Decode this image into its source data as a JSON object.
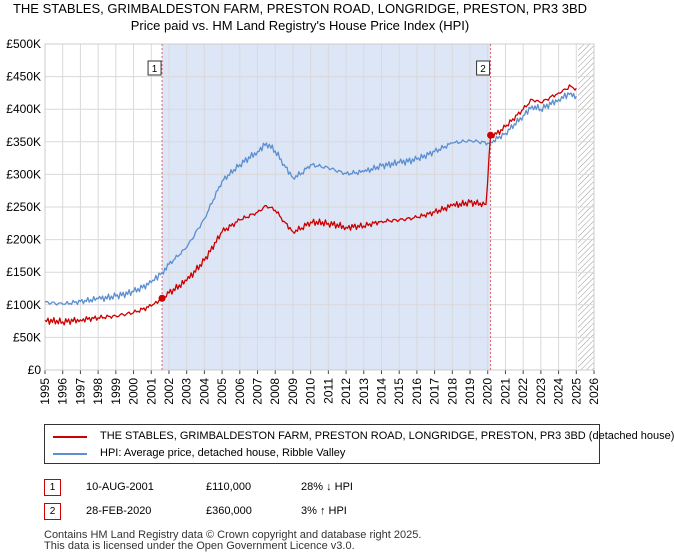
{
  "header": {
    "title_line1": "THE STABLES, GRIMBALDESTON FARM, PRESTON ROAD, LONGRIDGE, PRESTON, PR3 3BD",
    "title_line2": "Price paid vs. HM Land Registry's House Price Index (HPI)"
  },
  "colors": {
    "property_line": "#cc0000",
    "hpi_line": "#5b8fd0",
    "shaded_region": "#dde6f7",
    "grid": "#d9d9d9",
    "marker_vline": "#e06666"
  },
  "chart_data": {
    "type": "line",
    "title": "THE STABLES, GRIMBALDESTON FARM, PRESTON ROAD, LONGRIDGE, PRESTON, PR3 3BD",
    "subtitle": "Price paid vs. HM Land Registry's House Price Index (HPI)",
    "xlim": [
      1995,
      2026
    ],
    "ylim": [
      0,
      500000
    ],
    "x_ticks": [
      "1995",
      "1996",
      "1997",
      "1998",
      "1999",
      "2000",
      "2001",
      "2002",
      "2003",
      "2004",
      "2005",
      "2006",
      "2007",
      "2008",
      "2009",
      "2010",
      "2011",
      "2012",
      "2013",
      "2014",
      "2015",
      "2016",
      "2017",
      "2018",
      "2019",
      "2020",
      "2021",
      "2022",
      "2023",
      "2024",
      "2025",
      "2026"
    ],
    "y_ticks": [
      {
        "value": 0,
        "label": "£0"
      },
      {
        "value": 50000,
        "label": "£50K"
      },
      {
        "value": 100000,
        "label": "£100K"
      },
      {
        "value": 150000,
        "label": "£150K"
      },
      {
        "value": 200000,
        "label": "£200K"
      },
      {
        "value": 250000,
        "label": "£250K"
      },
      {
        "value": 300000,
        "label": "£300K"
      },
      {
        "value": 350000,
        "label": "£350K"
      },
      {
        "value": 400000,
        "label": "£400K"
      },
      {
        "value": 450000,
        "label": "£450K"
      },
      {
        "value": 500000,
        "label": "£500K"
      }
    ],
    "shaded_period": [
      2001.61,
      2020.16
    ],
    "forecast_hatch_from": 2025.1,
    "markers": [
      {
        "label": "1",
        "x": 2001.61
      },
      {
        "label": "2",
        "x": 2020.16
      }
    ],
    "sale_points": [
      {
        "x": 2001.61,
        "y": 110000
      },
      {
        "x": 2020.16,
        "y": 360000
      }
    ],
    "series": [
      {
        "name": "THE STABLES, GRIMBALDESTON FARM, PRESTON ROAD, LONGRIDGE, PRESTON, PR3 3BD (detached house)",
        "x": [
          1995,
          1996,
          1997,
          1998,
          1999,
          2000,
          2001,
          2001.61,
          2002,
          2003,
          2004,
          2005,
          2006,
          2007,
          2007.5,
          2008,
          2008.5,
          2009,
          2009.5,
          2010,
          2011,
          2012,
          2013,
          2014,
          2015,
          2016,
          2017,
          2018,
          2019,
          2019.9,
          2020.16,
          2020.5,
          2021,
          2022,
          2022.5,
          2023,
          2024,
          2024.7,
          2025
        ],
        "y": [
          76000,
          74000,
          77000,
          80000,
          83000,
          88000,
          98000,
          110000,
          118000,
          137000,
          168000,
          212000,
          230000,
          242000,
          252000,
          245000,
          228000,
          212000,
          218000,
          227000,
          225000,
          219000,
          221000,
          228000,
          230000,
          234000,
          242000,
          252000,
          257000,
          254000,
          360000,
          362000,
          373000,
          400000,
          415000,
          410000,
          425000,
          435000,
          432000
        ]
      },
      {
        "name": "HPI: Average price, detached house, Ribble Valley",
        "x": [
          1995,
          1996,
          1997,
          1998,
          1999,
          2000,
          2001,
          2001.61,
          2002,
          2003,
          2004,
          2005,
          2006,
          2007,
          2007.5,
          2008,
          2008.5,
          2009,
          2009.5,
          2010,
          2011,
          2012,
          2013,
          2014,
          2015,
          2016,
          2017,
          2018,
          2019,
          2020,
          2020.16,
          2021,
          2022,
          2022.5,
          2023,
          2024,
          2024.7,
          2025
        ],
        "y": [
          104000,
          101000,
          105000,
          109000,
          113000,
          120000,
          134000,
          150000,
          162000,
          188000,
          232000,
          290000,
          315000,
          335000,
          348000,
          336000,
          315000,
          295000,
          302000,
          315000,
          310000,
          301000,
          304000,
          313000,
          318000,
          323000,
          335000,
          348000,
          352000,
          348000,
          349000,
          363000,
          390000,
          405000,
          400000,
          415000,
          425000,
          420000
        ]
      }
    ]
  },
  "legend": {
    "property_label": "THE STABLES, GRIMBALDESTON FARM, PRESTON ROAD, LONGRIDGE, PRESTON, PR3 3BD (detached house)",
    "hpi_label": "HPI: Average price, detached house, Ribble Valley"
  },
  "transactions": [
    {
      "marker": "1",
      "date": "10-AUG-2001",
      "price": "£110,000",
      "hpi_change": "28% ↓ HPI"
    },
    {
      "marker": "2",
      "date": "28-FEB-2020",
      "price": "£360,000",
      "hpi_change": "3% ↑ HPI"
    }
  ],
  "footer": {
    "line1": "Contains HM Land Registry data © Crown copyright and database right 2025.",
    "line2": "This data is licensed under the Open Government Licence v3.0."
  }
}
